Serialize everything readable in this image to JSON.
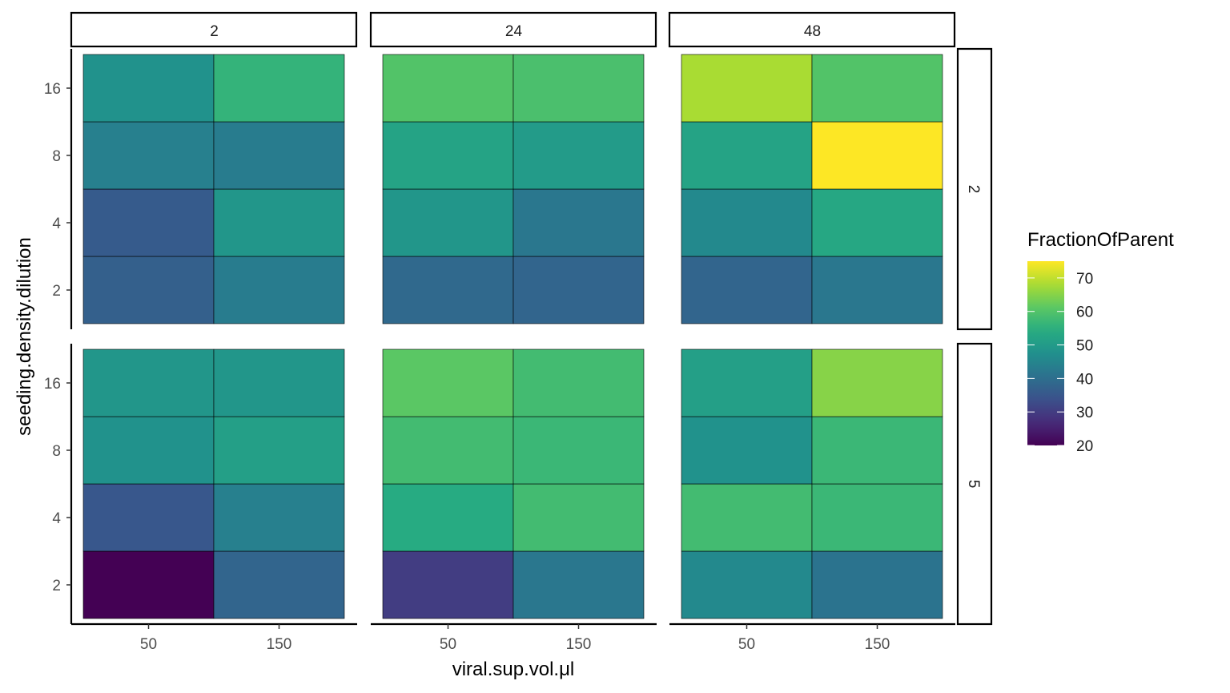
{
  "chart_data": {
    "type": "heatmap",
    "title": "",
    "xlabel": "viral.sup.vol.μl",
    "ylabel": "seeding.density.dilution",
    "x_categories": [
      "50",
      "150"
    ],
    "y_categories": [
      "2",
      "4",
      "8",
      "16"
    ],
    "col_facets": [
      "2",
      "24",
      "48"
    ],
    "row_facets": [
      "2",
      "5"
    ],
    "legend": {
      "title": "FractionOfParent",
      "ticks": [
        70,
        60,
        50,
        40,
        30,
        20
      ],
      "range": [
        20,
        75
      ],
      "position": "right"
    },
    "colorscale": "viridis",
    "panels": [
      {
        "col_facet": "2",
        "row_facet": "2",
        "values": {
          "16": [
            48,
            56
          ],
          "8": [
            44,
            43
          ],
          "4": [
            36,
            49
          ],
          "2": [
            37,
            43
          ]
        }
      },
      {
        "col_facet": "24",
        "row_facet": "2",
        "values": {
          "16": [
            60,
            59
          ],
          "8": [
            52,
            50
          ],
          "4": [
            49,
            42
          ],
          "2": [
            39,
            38
          ]
        }
      },
      {
        "col_facet": "48",
        "row_facet": "2",
        "values": {
          "16": [
            68,
            60
          ],
          "8": [
            52,
            75
          ],
          "4": [
            46,
            53
          ],
          "2": [
            38,
            42
          ]
        }
      },
      {
        "col_facet": "2",
        "row_facet": "5",
        "values": {
          "16": [
            49,
            49
          ],
          "8": [
            48,
            51
          ],
          "4": [
            35,
            44
          ],
          "2": [
            20,
            38
          ]
        }
      },
      {
        "col_facet": "24",
        "row_facet": "5",
        "values": {
          "16": [
            61,
            58
          ],
          "8": [
            58,
            57
          ],
          "4": [
            54,
            58
          ],
          "2": [
            30,
            42
          ]
        }
      },
      {
        "col_facet": "48",
        "row_facet": "5",
        "values": {
          "16": [
            51,
            65
          ],
          "8": [
            48,
            57
          ],
          "4": [
            58,
            57
          ],
          "2": [
            46,
            41
          ]
        }
      }
    ]
  }
}
